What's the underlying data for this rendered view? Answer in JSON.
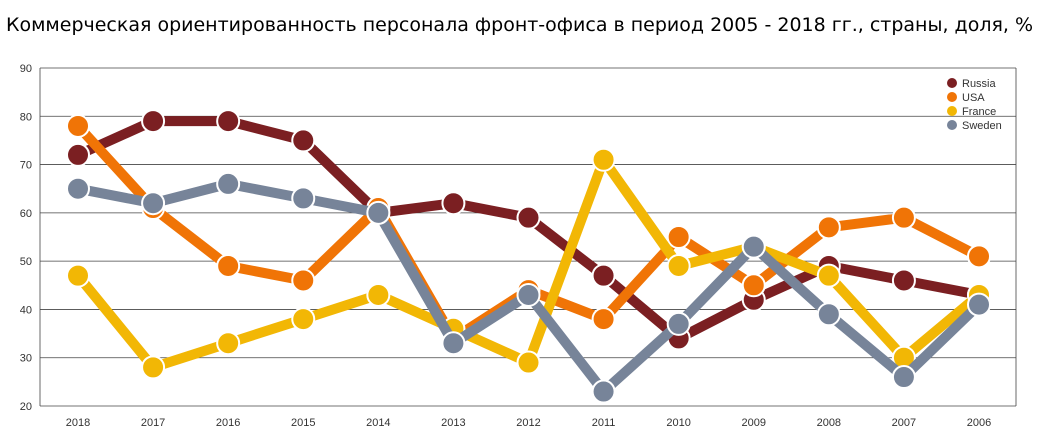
{
  "chart_data": {
    "type": "line",
    "title": "Коммерческая ориентированность персонала фронт-офиса в период 2005 - 2018 гг., страны, доля, %",
    "xlabel": "",
    "ylabel": "",
    "categories": [
      "2018",
      "2017",
      "2016",
      "2015",
      "2014",
      "2013",
      "2012",
      "2011",
      "2010",
      "2009",
      "2008",
      "2007",
      "2006"
    ],
    "ylim": [
      20,
      90
    ],
    "yticks": [
      20,
      30,
      40,
      50,
      60,
      70,
      80,
      90
    ],
    "grid": true,
    "legend_position": "top-right",
    "series": [
      {
        "name": "Russia",
        "color": "#7b1f22",
        "values": [
          72,
          79,
          79,
          75,
          60,
          62,
          59,
          47,
          34,
          42,
          49,
          46,
          43
        ]
      },
      {
        "name": "USA",
        "color": "#f07406",
        "values": [
          78,
          61,
          49,
          46,
          61,
          34,
          44,
          38,
          55,
          45,
          57,
          59,
          51
        ]
      },
      {
        "name": "France",
        "color": "#f2b705",
        "values": [
          47,
          28,
          33,
          38,
          43,
          36,
          29,
          71,
          49,
          53,
          47,
          30,
          43
        ]
      },
      {
        "name": "Sweden",
        "color": "#778499",
        "values": [
          65,
          62,
          66,
          63,
          60,
          33,
          43,
          23,
          37,
          53,
          39,
          26,
          41
        ]
      }
    ]
  }
}
